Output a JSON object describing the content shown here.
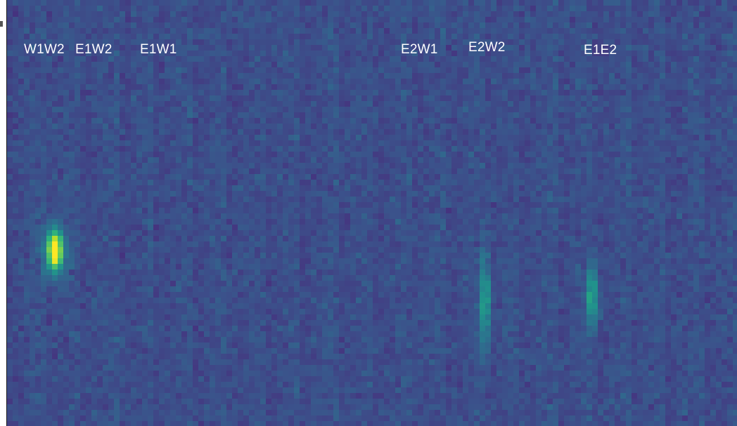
{
  "image": {
    "kind": "interferometric fringe heatmap",
    "colormap": [
      "#440154",
      "#472f7d",
      "#3b528b",
      "#2c728e",
      "#21918c",
      "#28ae80",
      "#5ec962",
      "#addc30",
      "#fde725"
    ]
  },
  "baseline_labels": [
    {
      "id": "w1w2",
      "text": "W1W2"
    },
    {
      "id": "e1w2",
      "text": "E1W2"
    },
    {
      "id": "e1w1",
      "text": "E1W1"
    },
    {
      "id": "e2w1",
      "text": "E2W1"
    },
    {
      "id": "e2w2",
      "text": "E2W2"
    },
    {
      "id": "e1e2",
      "text": "E1E2"
    }
  ],
  "fringe_signals": [
    {
      "baseline": "W1W2",
      "relative_intensity": 1.0
    },
    {
      "baseline": "E2W2",
      "relative_intensity": 0.45
    },
    {
      "baseline": "E1E2",
      "relative_intensity": 0.5
    }
  ]
}
